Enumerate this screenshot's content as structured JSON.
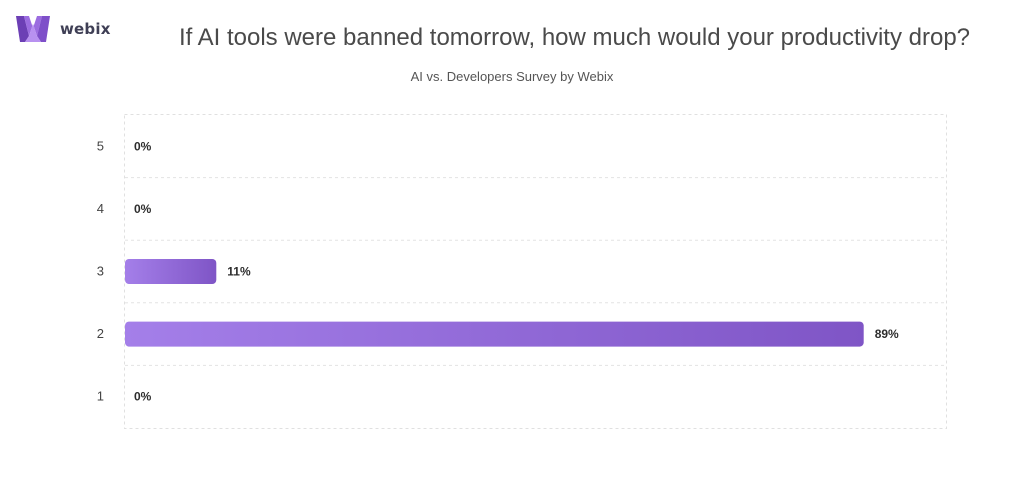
{
  "brand": {
    "name": "webix",
    "logo_icon": "webix-logo-icon",
    "accent": "#8b5fd9"
  },
  "header": {
    "title": "If AI tools were banned tomorrow, how much would your productivity drop?",
    "subtitle": "AI vs. Developers Survey by Webix"
  },
  "chart_data": {
    "type": "bar",
    "orientation": "horizontal",
    "categories": [
      "5",
      "4",
      "3",
      "2",
      "1"
    ],
    "values": [
      0,
      0,
      11,
      89,
      0
    ],
    "value_labels": [
      "0%",
      "0%",
      "11%",
      "89%",
      "0%"
    ],
    "title": "If AI tools were banned tomorrow, how much would your productivity drop?",
    "subtitle": "AI vs. Developers Survey by Webix",
    "xlabel": "",
    "ylabel": "",
    "xlim": [
      0,
      100
    ],
    "grid": true,
    "legend": "none",
    "bar_color_start": "#a47fe9",
    "bar_color_end": "#7f55c6"
  }
}
